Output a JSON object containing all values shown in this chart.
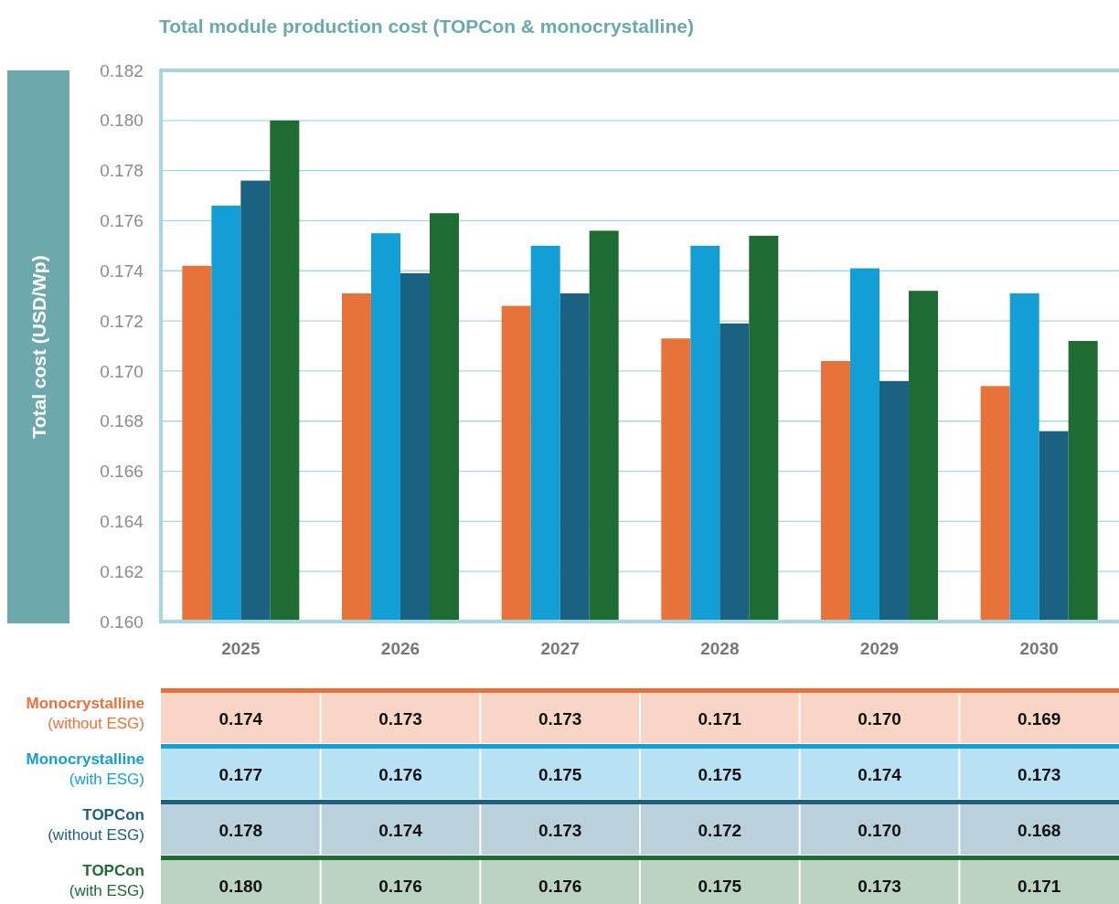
{
  "chart_data": {
    "type": "bar",
    "title": "Total module production cost (TOPCon & monocrystalline)",
    "ylabel": "Total cost (USD/Wp)",
    "categories": [
      "2025",
      "2026",
      "2027",
      "2028",
      "2029",
      "2030"
    ],
    "series": [
      {
        "name": "Monocrystalline (without ESG)",
        "color": "#e8733a",
        "values": [
          0.1742,
          0.1731,
          0.1726,
          0.1713,
          0.1704,
          0.1694
        ],
        "value_labels": [
          "0.174",
          "0.173",
          "0.173",
          "0.171",
          "0.170",
          "0.169"
        ]
      },
      {
        "name": "Monocrystalline (with ESG)",
        "color": "#139fd6",
        "values": [
          0.1766,
          0.1755,
          0.175,
          0.175,
          0.1741,
          0.1731
        ],
        "value_labels": [
          "0.177",
          "0.176",
          "0.175",
          "0.175",
          "0.174",
          "0.173"
        ]
      },
      {
        "name": "TOPCon (without ESG)",
        "color": "#1a6182",
        "values": [
          0.1776,
          0.1739,
          0.1731,
          0.1719,
          0.1696,
          0.1676
        ],
        "value_labels": [
          "0.178",
          "0.174",
          "0.173",
          "0.172",
          "0.170",
          "0.168"
        ]
      },
      {
        "name": "TOPCon (with ESG)",
        "color": "#1e6b34",
        "values": [
          0.18,
          0.1763,
          0.1756,
          0.1754,
          0.1732,
          0.1712
        ],
        "value_labels": [
          "0.180",
          "0.176",
          "0.176",
          "0.175",
          "0.173",
          "0.171"
        ]
      }
    ],
    "ylim": [
      0.16,
      0.182
    ],
    "yticks": [
      {
        "value": 0.16,
        "label": "0.160"
      },
      {
        "value": 0.162,
        "label": "0.162"
      },
      {
        "value": 0.164,
        "label": "0.164"
      },
      {
        "value": 0.166,
        "label": "0.166"
      },
      {
        "value": 0.168,
        "label": "0.168"
      },
      {
        "value": 0.17,
        "label": "0.170"
      },
      {
        "value": 0.172,
        "label": "0.172"
      },
      {
        "value": 0.174,
        "label": "0.174"
      },
      {
        "value": 0.176,
        "label": "0.176"
      },
      {
        "value": 0.178,
        "label": "0.178"
      },
      {
        "value": 0.18,
        "label": "0.180"
      },
      {
        "value": 0.182,
        "label": "0.182"
      }
    ],
    "grid": "y",
    "legend": "bottom"
  }
}
